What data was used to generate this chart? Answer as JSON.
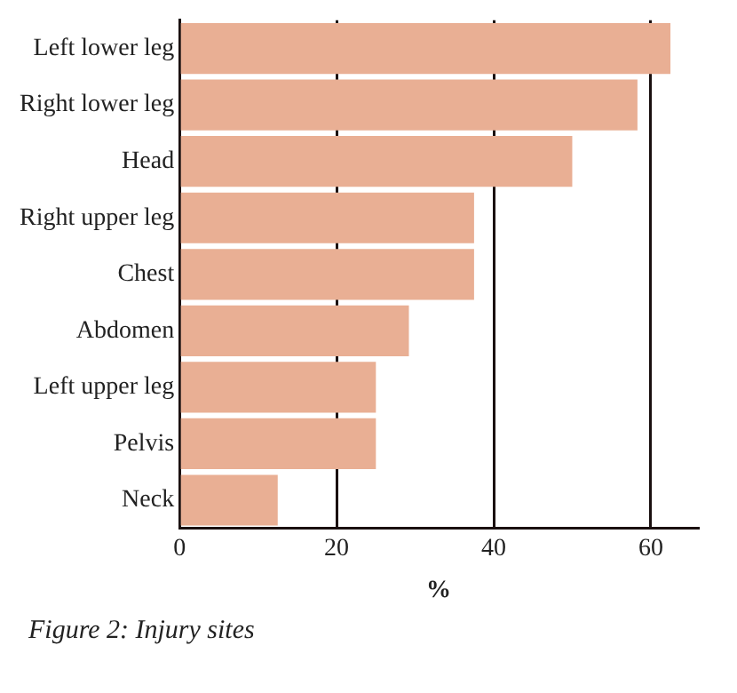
{
  "chart_data": {
    "type": "bar",
    "orientation": "horizontal",
    "xlabel": "%",
    "annotations": [
      "Figure 2: Injury sites"
    ],
    "categories": [
      "Left lower leg",
      "Right lower leg",
      "Head",
      "Right upper leg",
      "Chest",
      "Abdomen",
      "Left upper leg",
      "Pelvis",
      "Neck"
    ],
    "values": [
      62.5,
      58.3,
      50,
      37.5,
      37.5,
      29.2,
      25,
      25,
      12.5
    ],
    "color": "#e9af94",
    "xlim": [
      0,
      66
    ],
    "xticks": [
      0,
      20,
      40,
      60
    ],
    "grid": "x",
    "legend": false
  }
}
